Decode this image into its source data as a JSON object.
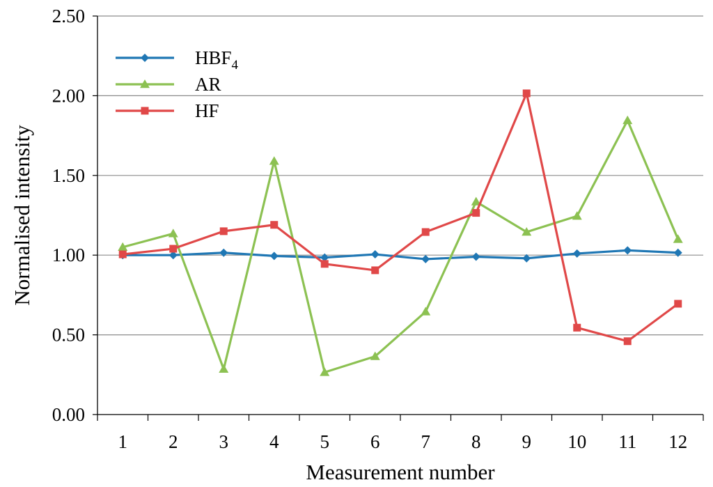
{
  "chart_data": {
    "type": "line",
    "title": "",
    "xlabel": "Measurement number",
    "ylabel": "Normalised intensity",
    "categories": [
      "1",
      "2",
      "3",
      "4",
      "5",
      "6",
      "7",
      "8",
      "9",
      "10",
      "11",
      "12"
    ],
    "ylim": [
      0,
      2.5
    ],
    "yticks": [
      "0.00",
      "0.50",
      "1.00",
      "1.50",
      "2.00",
      "2.50"
    ],
    "grid": "horizontal",
    "legend_position": "top-left",
    "series": [
      {
        "name": "HBF",
        "name_sub": "4",
        "color": "#1f77b4",
        "marker": "diamond",
        "values": [
          1.0,
          1.0,
          1.015,
          0.995,
          0.985,
          1.005,
          0.975,
          0.99,
          0.98,
          1.01,
          1.03,
          1.015
        ]
      },
      {
        "name": "AR",
        "color": "#8cc152",
        "marker": "triangle",
        "values": [
          1.05,
          1.135,
          0.285,
          1.59,
          0.265,
          0.365,
          0.645,
          1.335,
          1.145,
          1.245,
          1.845,
          1.1
        ]
      },
      {
        "name": "HF",
        "color": "#e04848",
        "marker": "square",
        "values": [
          1.005,
          1.04,
          1.15,
          1.19,
          0.945,
          0.905,
          1.145,
          1.265,
          2.015,
          0.545,
          0.46,
          0.695
        ]
      }
    ]
  }
}
